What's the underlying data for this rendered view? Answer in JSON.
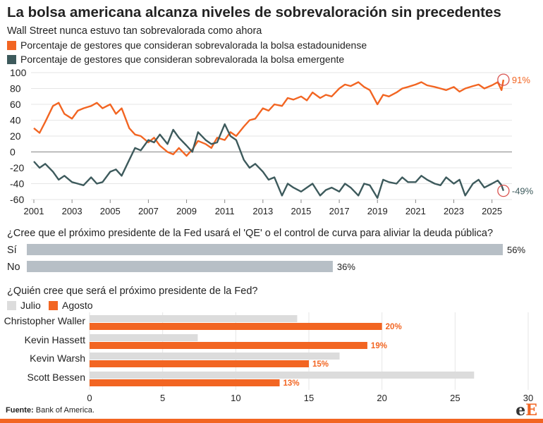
{
  "header": {
    "title": "La bolsa americana alcanza niveles de sobrevaloración sin precedentes",
    "subtitle": "Wall Street nunca estuvo tan sobrevalorada como ahora"
  },
  "colors": {
    "orange": "#f26522",
    "slate": "#3d5a5c",
    "gray": "#dcdcdc",
    "grid": "#e6e6e6"
  },
  "legend_top": [
    {
      "label": "Porcentaje de gestores que consideran sobrevalorada la bolsa estadounidense",
      "color": "#f26522"
    },
    {
      "label": "Porcentaje de gestores que consideran sobrevalorada la bolsa emergente",
      "color": "#3d5a5c"
    }
  ],
  "q1": {
    "question": "¿Cree que el próximo presidente de la Fed usará el 'QE' o el control de curva para aliviar la deuda pública?"
  },
  "q2": {
    "question": "¿Quién cree que será el próximo presidente de la Fed?",
    "legend": [
      {
        "label": "Julio",
        "color": "#dcdcdc"
      },
      {
        "label": "Agosto",
        "color": "#f26522"
      }
    ]
  },
  "footer": {
    "source_label": "Fuente:",
    "source_text": "Bank of America.",
    "logo_left": "e",
    "logo_right": "E"
  },
  "chart_data": [
    {
      "type": "line",
      "xlim": [
        2001,
        2025.9
      ],
      "ylim": [
        -60,
        100
      ],
      "xticks": [
        2001,
        2003,
        2005,
        2007,
        2009,
        2011,
        2013,
        2015,
        2017,
        2019,
        2021,
        2023,
        2025
      ],
      "yticks": [
        -60,
        -40,
        -20,
        0,
        20,
        40,
        60,
        80,
        100
      ],
      "grid": true,
      "series": [
        {
          "name": "Porcentaje de gestores que consideran sobrevalorada la bolsa estadounidense",
          "color": "#f26522",
          "x": [
            2001.0,
            2001.3,
            2001.6,
            2002.0,
            2002.3,
            2002.6,
            2003.0,
            2003.3,
            2003.6,
            2004.0,
            2004.3,
            2004.6,
            2005.0,
            2005.3,
            2005.6,
            2006.0,
            2006.3,
            2006.6,
            2007.0,
            2007.3,
            2007.6,
            2008.0,
            2008.3,
            2008.6,
            2009.0,
            2009.3,
            2009.6,
            2010.0,
            2010.3,
            2010.6,
            2011.0,
            2011.3,
            2011.6,
            2012.0,
            2012.3,
            2012.6,
            2013.0,
            2013.3,
            2013.6,
            2014.0,
            2014.3,
            2014.6,
            2015.0,
            2015.3,
            2015.6,
            2016.0,
            2016.3,
            2016.6,
            2017.0,
            2017.3,
            2017.6,
            2018.0,
            2018.3,
            2018.6,
            2019.0,
            2019.3,
            2019.6,
            2020.0,
            2020.3,
            2020.6,
            2021.0,
            2021.3,
            2021.6,
            2022.0,
            2022.3,
            2022.6,
            2023.0,
            2023.3,
            2023.6,
            2024.0,
            2024.3,
            2024.6,
            2025.0,
            2025.3,
            2025.5,
            2025.6
          ],
          "y": [
            30,
            24,
            38,
            58,
            62,
            48,
            42,
            52,
            55,
            58,
            62,
            55,
            60,
            48,
            55,
            30,
            22,
            20,
            12,
            18,
            8,
            0,
            -3,
            5,
            -5,
            3,
            14,
            10,
            5,
            18,
            15,
            25,
            20,
            32,
            40,
            42,
            55,
            52,
            60,
            58,
            68,
            66,
            70,
            65,
            75,
            68,
            72,
            70,
            80,
            85,
            83,
            88,
            82,
            78,
            60,
            72,
            70,
            75,
            80,
            82,
            85,
            88,
            84,
            82,
            80,
            78,
            82,
            76,
            80,
            83,
            85,
            80,
            84,
            88,
            78,
            91
          ]
        },
        {
          "name": "Porcentaje de gestores que consideran sobrevalorada la bolsa emergente",
          "color": "#3d5a5c",
          "x": [
            2001.0,
            2001.3,
            2001.6,
            2002.0,
            2002.3,
            2002.6,
            2003.0,
            2003.3,
            2003.6,
            2004.0,
            2004.3,
            2004.6,
            2005.0,
            2005.3,
            2005.6,
            2006.0,
            2006.3,
            2006.6,
            2007.0,
            2007.3,
            2007.6,
            2008.0,
            2008.3,
            2008.6,
            2009.0,
            2009.3,
            2009.6,
            2010.0,
            2010.3,
            2010.6,
            2011.0,
            2011.3,
            2011.6,
            2012.0,
            2012.3,
            2012.6,
            2013.0,
            2013.3,
            2013.6,
            2014.0,
            2014.3,
            2014.6,
            2015.0,
            2015.3,
            2015.6,
            2016.0,
            2016.3,
            2016.6,
            2017.0,
            2017.3,
            2017.6,
            2018.0,
            2018.3,
            2018.6,
            2019.0,
            2019.3,
            2019.6,
            2020.0,
            2020.3,
            2020.6,
            2021.0,
            2021.3,
            2021.6,
            2022.0,
            2022.3,
            2022.6,
            2023.0,
            2023.3,
            2023.6,
            2024.0,
            2024.3,
            2024.6,
            2025.0,
            2025.3,
            2025.5,
            2025.6
          ],
          "y": [
            -12,
            -20,
            -15,
            -25,
            -35,
            -30,
            -38,
            -40,
            -42,
            -32,
            -40,
            -38,
            -25,
            -22,
            -30,
            -10,
            5,
            2,
            15,
            12,
            22,
            10,
            28,
            18,
            8,
            0,
            25,
            15,
            10,
            12,
            35,
            20,
            15,
            -10,
            -20,
            -15,
            -25,
            -35,
            -32,
            -55,
            -40,
            -45,
            -50,
            -45,
            -40,
            -55,
            -48,
            -45,
            -50,
            -40,
            -45,
            -55,
            -40,
            -42,
            -58,
            -35,
            -38,
            -40,
            -32,
            -38,
            -38,
            -30,
            -35,
            -40,
            -42,
            -32,
            -40,
            -35,
            -55,
            -40,
            -35,
            -45,
            -40,
            -36,
            -42,
            -49
          ]
        }
      ],
      "annotations": [
        {
          "label": "91%",
          "x": 2025.6,
          "y": 91,
          "color": "#f26522"
        },
        {
          "label": "-49%",
          "x": 2025.6,
          "y": -49,
          "color": "#3d5a5c"
        }
      ]
    },
    {
      "type": "bar",
      "orientation": "horizontal",
      "title": "¿Cree que el próximo presidente de la Fed usará el 'QE' o el control de curva para aliviar la deuda pública?",
      "categories": [
        "Sí",
        "No"
      ],
      "values": [
        56,
        36
      ],
      "value_labels": [
        "56%",
        "36%"
      ],
      "color": "#b7bfc6"
    },
    {
      "type": "bar",
      "orientation": "horizontal",
      "title": "¿Quién cree que será el próximo presidente de la Fed?",
      "categories": [
        "Christopher Waller",
        "Kevin Hassett",
        "Kevin Warsh",
        "Scott Bessen"
      ],
      "xlim": [
        0,
        30
      ],
      "xticks": [
        0,
        5,
        10,
        15,
        20,
        25,
        30
      ],
      "grid": true,
      "series": [
        {
          "name": "Julio",
          "color": "#dcdcdc",
          "values": [
            14.2,
            7.4,
            17.1,
            26.3
          ],
          "value_labels": [
            "",
            "",
            "",
            ""
          ]
        },
        {
          "name": "Agosto",
          "color": "#f26522",
          "values": [
            20,
            19,
            15,
            13
          ],
          "value_labels": [
            "20%",
            "19%",
            "15%",
            "13%"
          ]
        }
      ]
    }
  ]
}
